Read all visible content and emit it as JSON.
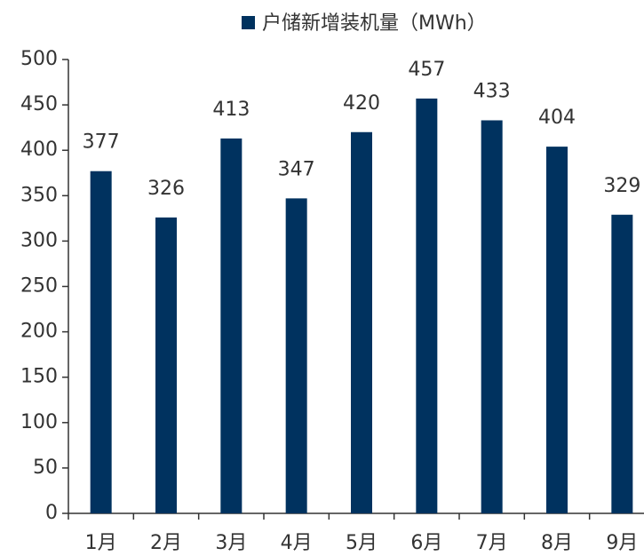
{
  "chart_data": {
    "type": "bar",
    "categories": [
      "1月",
      "2月",
      "3月",
      "4月",
      "5月",
      "6月",
      "7月",
      "8月",
      "9月"
    ],
    "series": [
      {
        "name": "户储新增装机量（MWh）",
        "color": "#00325f",
        "values": [
          377,
          326,
          413,
          347,
          420,
          457,
          433,
          404,
          329
        ]
      }
    ],
    "ylim": [
      0,
      500
    ],
    "yticks": [
      0,
      50,
      100,
      150,
      200,
      250,
      300,
      350,
      400,
      450,
      500
    ],
    "legend": "top",
    "data_labels": true
  }
}
